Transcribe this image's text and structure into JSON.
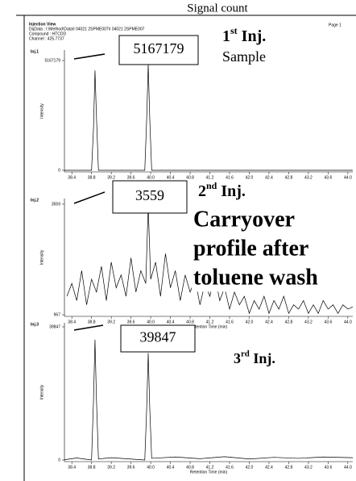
{
  "title": "Signal count",
  "header": {
    "view": "Injection View",
    "file": "DqData : I:\\Method\\Data\\I 04021 2SPME007\\I 04021 2SPME007",
    "compound": "Compound : HTCDD",
    "channel": "Channel : 425.7737",
    "page": "Page 1"
  },
  "chart_data": [
    {
      "type": "line",
      "label": "Inj.1",
      "ylabel": "Intensity",
      "x": [
        38.25,
        38.8,
        38.84,
        38.87,
        38.9,
        38.94,
        39.88,
        39.92,
        39.95,
        39.98,
        40.02,
        44.1
      ],
      "series": [
        {
          "color": "#000000",
          "values": [
            0,
            0,
            2000000,
            4700000,
            2500000,
            0,
            0,
            2500000,
            5000000,
            2500000,
            0,
            0
          ]
        }
      ],
      "xlim": [
        38.25,
        44.1
      ],
      "ylim": [
        -76000,
        5661000
      ],
      "xticks": [
        38.4,
        38.8,
        39.2,
        39.6,
        {
          "value": 40,
          "label": "40.0"
        },
        40.4,
        40.8,
        41.2,
        41.6,
        {
          "value": 42,
          "label": "42.0"
        },
        42.4,
        42.8,
        43.2,
        43.6,
        {
          "value": 44,
          "label": "44.0"
        }
      ],
      "yticks": [
        0,
        5167179
      ],
      "callout": 5167179,
      "inj_label": [
        "1",
        "st",
        " Inj."
      ],
      "note": [
        "Sample"
      ]
    },
    {
      "type": "line",
      "label": "Inj.2",
      "ylabel": "Intensity",
      "xlabel": "Retention Time (min)",
      "x": [
        38.3,
        38.4,
        38.5,
        38.6,
        38.7,
        38.8,
        38.9,
        39.0,
        39.1,
        39.2,
        39.3,
        39.4,
        39.5,
        39.6,
        39.7,
        39.8,
        39.9,
        39.95,
        40.0,
        40.1,
        40.2,
        40.3,
        40.4,
        40.5,
        40.6,
        40.7,
        40.8,
        40.9,
        41.0,
        41.1,
        41.2,
        41.3,
        41.4,
        41.5,
        41.6,
        41.7,
        41.8,
        41.9,
        42.0,
        42.1,
        42.2,
        42.3,
        42.4,
        42.5,
        42.6,
        42.7,
        42.8,
        42.9,
        43.0,
        43.1,
        43.2,
        43.3,
        43.4,
        43.5,
        43.6,
        43.7,
        43.8,
        43.9,
        44.0,
        44.1
      ],
      "series": [
        {
          "color": "#000000",
          "values": [
            1400,
            1700,
            1300,
            2000,
            1200,
            1800,
            1500,
            2100,
            1300,
            2200,
            1600,
            1900,
            1400,
            2300,
            1500,
            2000,
            1700,
            3500,
            1800,
            2200,
            1400,
            2400,
            1600,
            2000,
            1300,
            1900,
            1500,
            1800,
            1200,
            1700,
            1400,
            1900,
            1300,
            1600,
            1100,
            1500,
            1200,
            1400,
            1000,
            1300,
            1100,
            1400,
            1000,
            1300,
            1100,
            1400,
            1000,
            1200,
            1100,
            1300,
            1000,
            1200,
            1000,
            1300,
            1100,
            1200,
            1000,
            1200,
            1100,
            1150
          ]
        }
      ],
      "xlim": [
        38.25,
        44.1
      ],
      "ylim": [
        930,
        3690
      ],
      "xticks": [
        38.4,
        38.8,
        39.2,
        39.6,
        {
          "value": 40,
          "label": "40.0"
        },
        40.4,
        40.8,
        41.2,
        41.6,
        {
          "value": 42,
          "label": "42.0"
        },
        42.4,
        42.8,
        43.2,
        43.6,
        {
          "value": 44,
          "label": "44.0"
        }
      ],
      "yticks": [
        967,
        3559
      ],
      "callout": 3559,
      "inj_label": [
        "2",
        "nd",
        " Inj."
      ],
      "note": [
        "Carryover",
        "profile after",
        "toluene wash"
      ]
    },
    {
      "type": "line",
      "label": "Inj.3",
      "ylabel": "Intensity",
      "xlabel": "Retention Time (min)",
      "x": [
        38.25,
        38.5,
        38.8,
        38.84,
        38.87,
        38.9,
        38.94,
        39.2,
        39.5,
        39.88,
        39.92,
        39.95,
        39.98,
        40.02,
        40.5,
        41,
        41.5,
        42,
        42.5,
        43,
        43.5,
        44.1
      ],
      "series": [
        {
          "color": "#000000",
          "values": [
            100,
            600,
            0,
            18000,
            36000,
            18000,
            300,
            700,
            400,
            0,
            16000,
            32000,
            16000,
            500,
            900,
            400,
            1000,
            300,
            800,
            500,
            900,
            700
          ]
        }
      ],
      "xlim": [
        38.25,
        44.1
      ],
      "ylim": [
        -480,
        41050
      ],
      "xticks": [
        38.4,
        38.8,
        39.2,
        39.6,
        {
          "value": 40,
          "label": "40.0"
        },
        40.4,
        40.8,
        41.2,
        41.6,
        {
          "value": 42,
          "label": "42.0"
        },
        42.4,
        42.8,
        43.2,
        43.6,
        {
          "value": 44,
          "label": "44.0"
        }
      ],
      "yticks": [
        0,
        39847
      ],
      "callout": 39847,
      "inj_label": [
        "3",
        "rd",
        " Inj."
      ]
    }
  ]
}
